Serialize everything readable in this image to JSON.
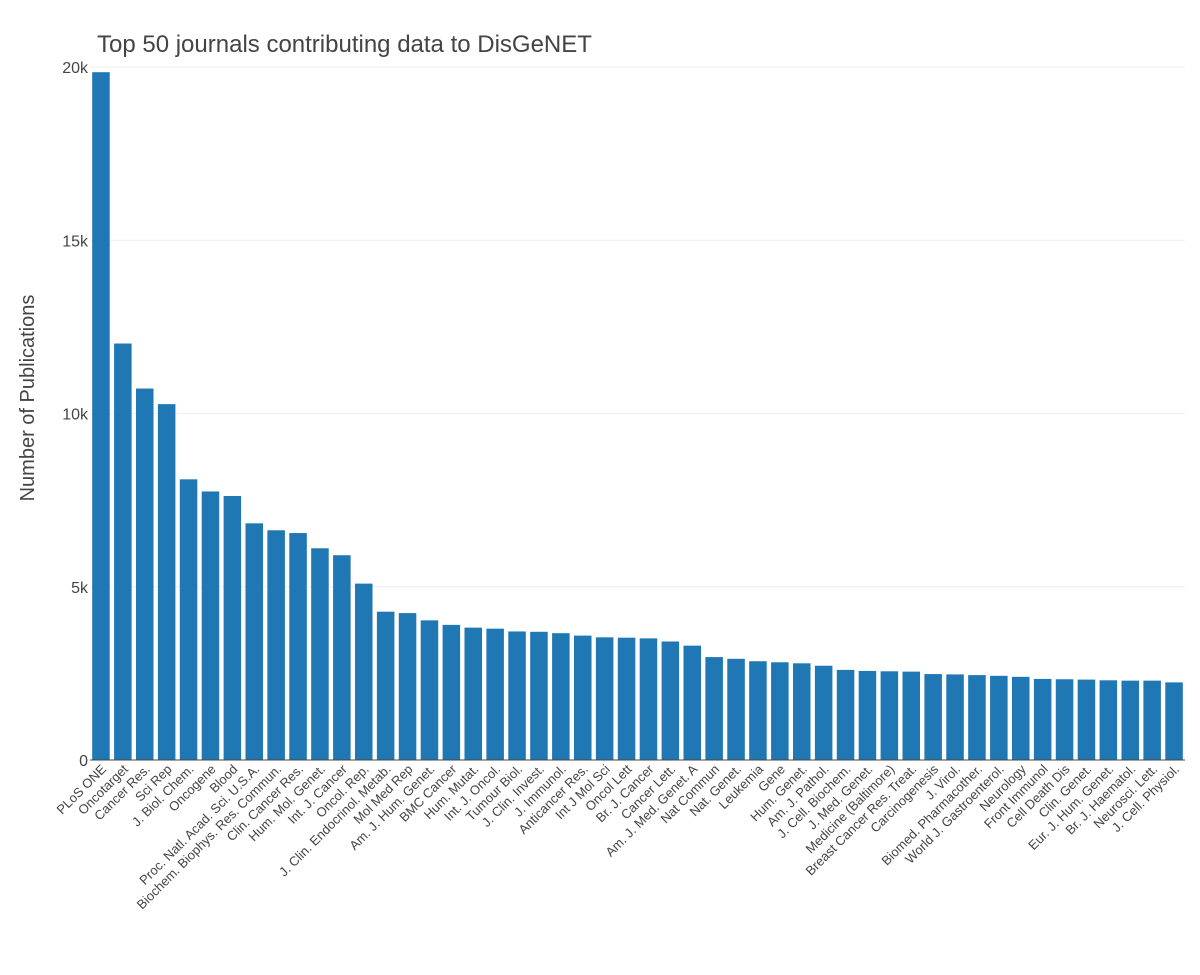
{
  "chart_data": {
    "type": "bar",
    "title": "Top 50 journals contributing data to DisGeNET",
    "xlabel": "",
    "ylabel": "Number of Publications",
    "ylim": [
      0,
      20000
    ],
    "yticks": [
      0,
      5000,
      10000,
      15000,
      20000
    ],
    "ytick_labels": [
      "0",
      "5k",
      "10k",
      "15k",
      "20k"
    ],
    "grid": true,
    "bar_color": "#1f77b4",
    "categories": [
      "PLoS ONE",
      "Oncotarget",
      "Cancer Res.",
      "Sci Rep",
      "J. Biol. Chem.",
      "Oncogene",
      "Blood",
      "Proc. Natl. Acad. Sci. U.S.A.",
      "Biochem. Biophys. Res. Commun.",
      "Clin. Cancer Res.",
      "Hum. Mol. Genet.",
      "Int. J. Cancer",
      "Oncol. Rep.",
      "J. Clin. Endocrinol. Metab.",
      "Mol Med Rep",
      "Am. J. Hum. Genet.",
      "BMC Cancer",
      "Hum. Mutat.",
      "Int. J. Oncol.",
      "Tumour Biol.",
      "J. Clin. Invest.",
      "J. Immunol.",
      "Anticancer Res.",
      "Int J Mol Sci",
      "Oncol Lett",
      "Br. J. Cancer",
      "Cancer Lett.",
      "Am. J. Med. Genet. A",
      "Nat Commun",
      "Nat. Genet.",
      "Leukemia",
      "Gene",
      "Hum. Genet.",
      "Am. J. Pathol.",
      "J. Cell. Biochem.",
      "J. Med. Genet.",
      "Medicine (Baltimore)",
      "Breast Cancer Res. Treat.",
      "Carcinogenesis",
      "J. Virol.",
      "Biomed. Pharmacother.",
      "World J. Gastroenterol.",
      "Neurology",
      "Front Immunol",
      "Cell Death Dis",
      "Clin. Genet.",
      "Eur. J. Hum. Genet.",
      "Br. J. Haematol.",
      "Neurosci. Lett.",
      "J. Cell. Physiol."
    ],
    "values": [
      19850,
      12020,
      10720,
      10270,
      8100,
      7750,
      7620,
      6830,
      6630,
      6550,
      6110,
      5910,
      5090,
      4280,
      4240,
      4030,
      3900,
      3820,
      3790,
      3710,
      3700,
      3660,
      3590,
      3540,
      3530,
      3510,
      3420,
      3300,
      2970,
      2920,
      2850,
      2820,
      2790,
      2720,
      2600,
      2570,
      2560,
      2550,
      2480,
      2470,
      2450,
      2430,
      2400,
      2340,
      2330,
      2320,
      2300,
      2290,
      2290,
      2240
    ]
  }
}
